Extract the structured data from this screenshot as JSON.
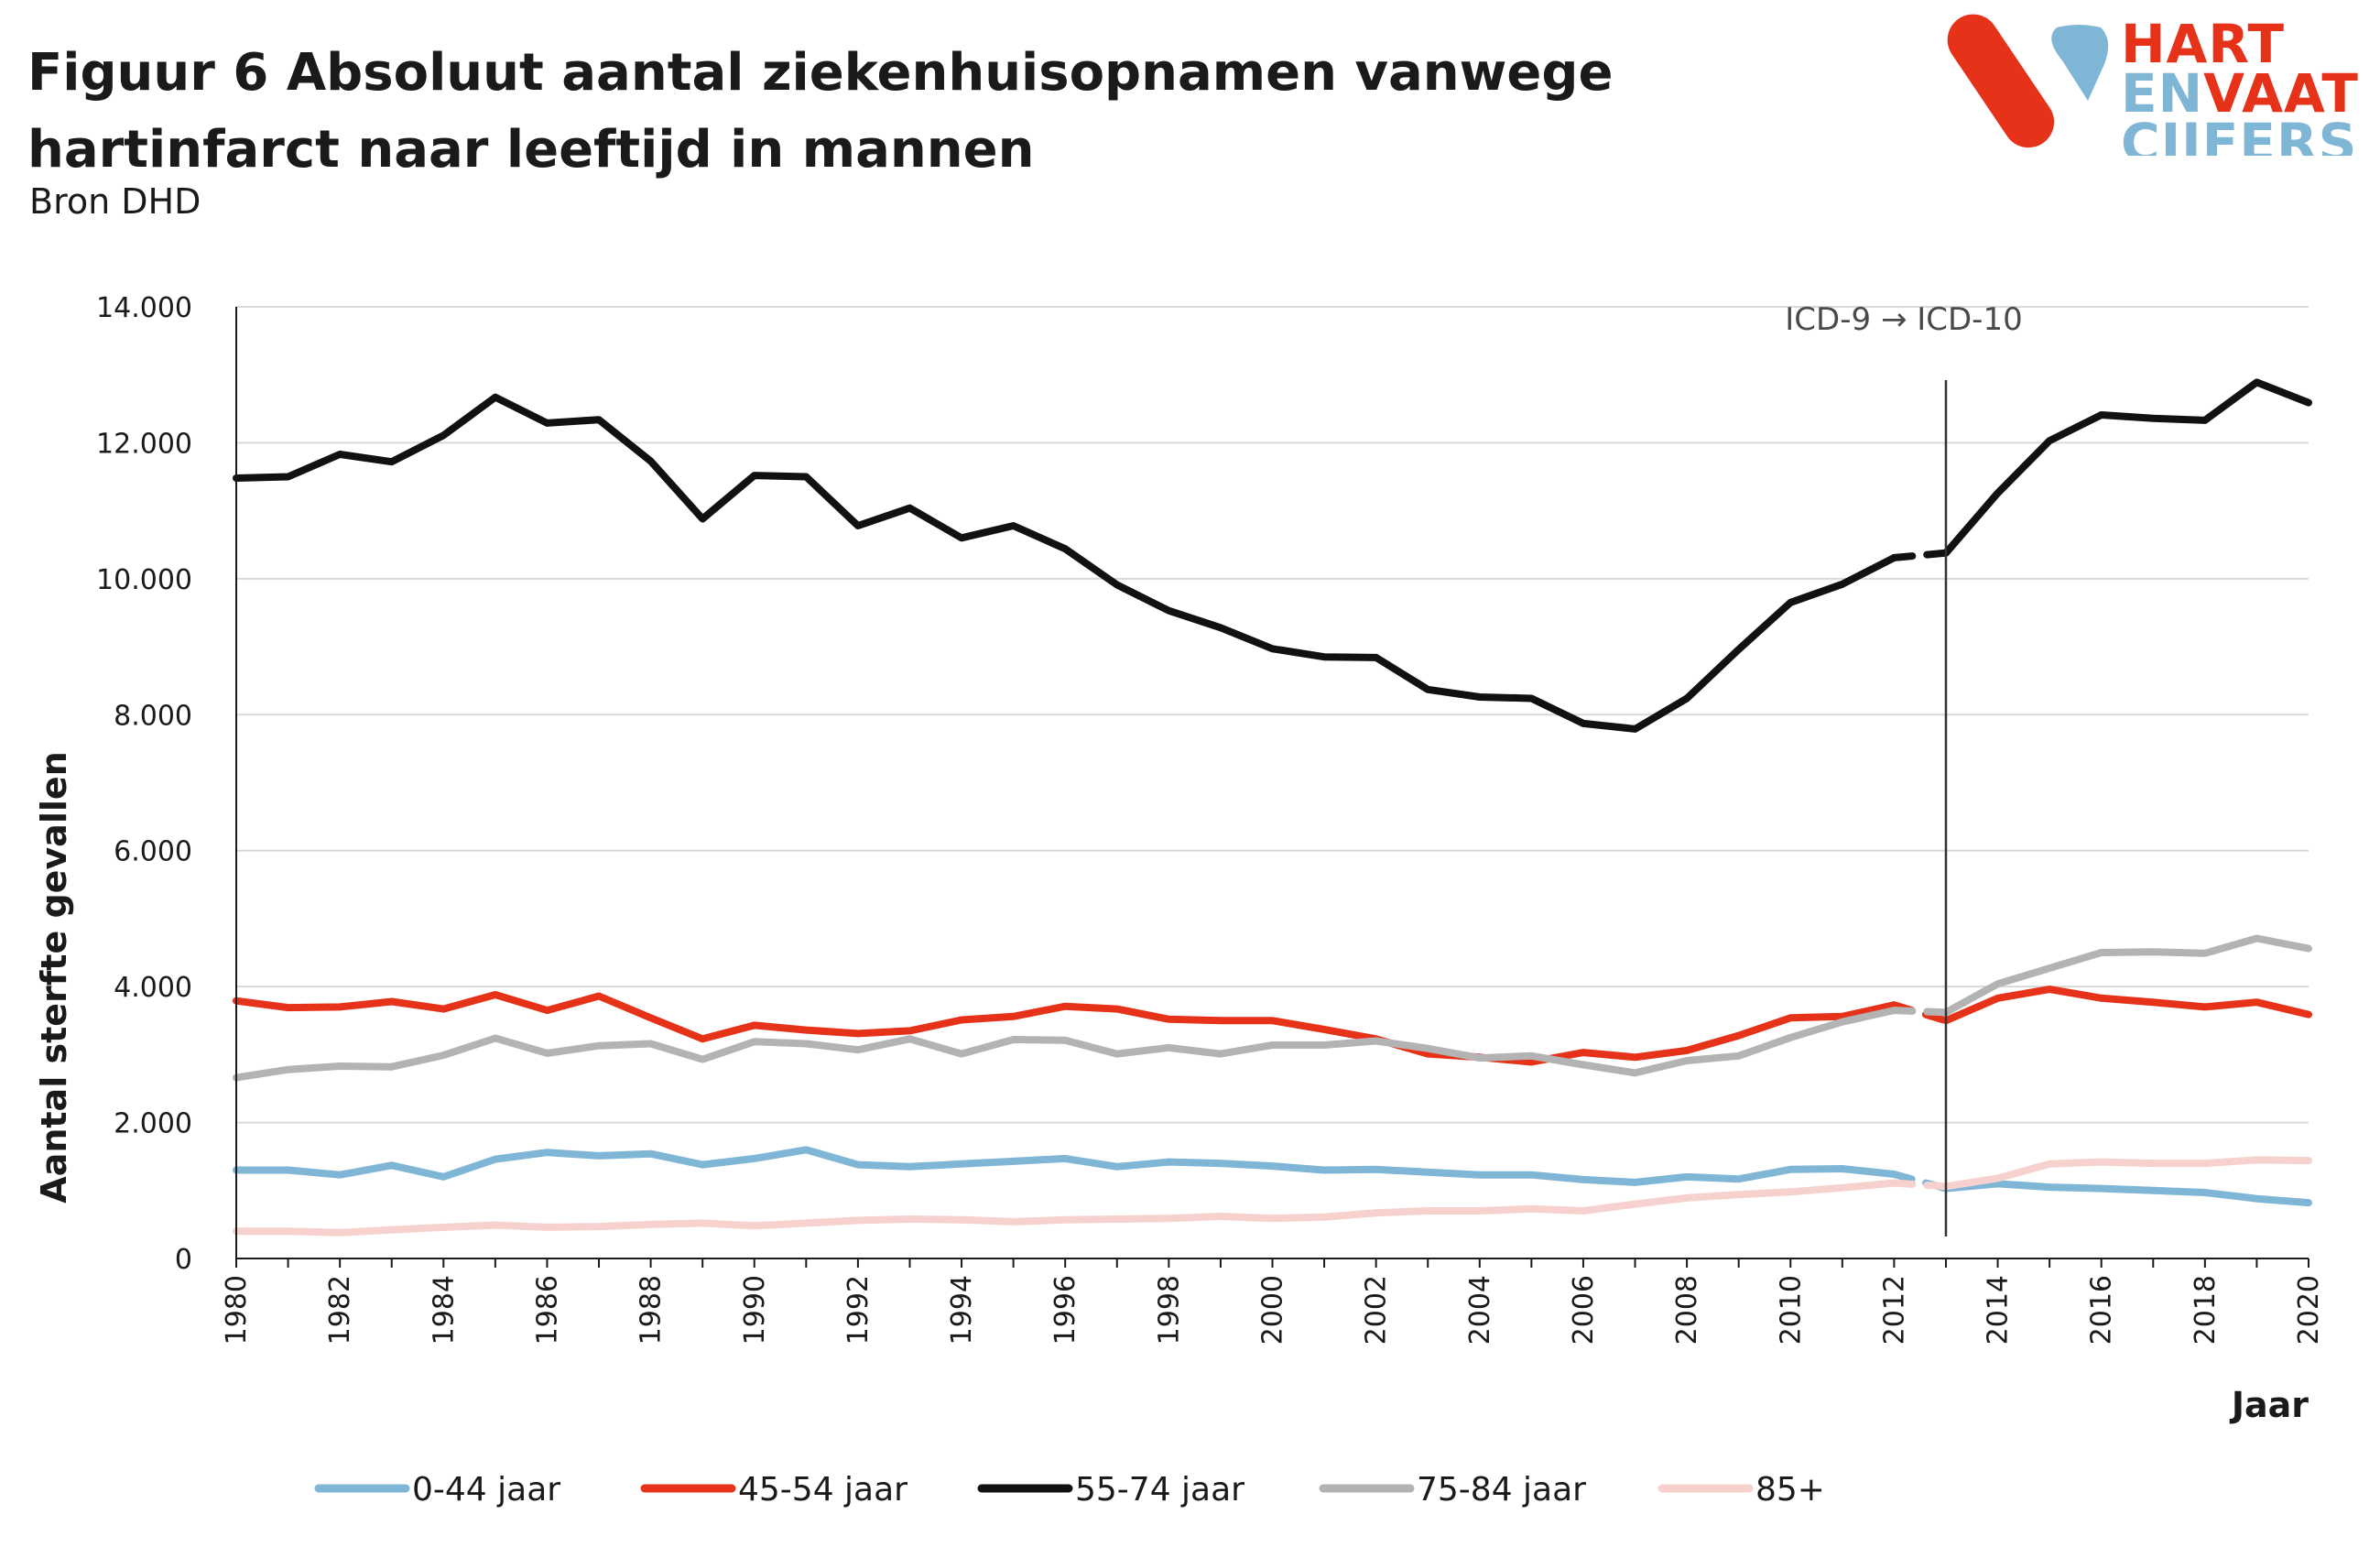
{
  "title": "Figuur 6  Absoluut aantal ziekenhuisopnamen vanwege hartinfarct naar leeftijd in mannen",
  "subtitle": "Bron DHD",
  "logo": {
    "line1": "HART",
    "line2a": "EN",
    "line2b": "VAAT",
    "line3": "CIJFERS",
    "colors": {
      "red": "#e53219",
      "blue": "#7fb5d5"
    }
  },
  "chart_data": {
    "type": "line",
    "title": "",
    "xlabel": "Jaar",
    "ylabel": "Aantal sterfte gevallen",
    "ylim": [
      0,
      14000
    ],
    "xlim": [
      1980,
      2020
    ],
    "y_ticks": [
      0,
      2000,
      4000,
      6000,
      8000,
      10000,
      12000,
      14000
    ],
    "y_tick_labels": [
      "0",
      "2.000",
      "4.000",
      "6.000",
      "8.000",
      "10.000",
      "12.000",
      "14.000"
    ],
    "x_tick_labels": [
      "1980",
      "1982",
      "1984",
      "1986",
      "1988",
      "1990",
      "1992",
      "1994",
      "1996",
      "1998",
      "2000",
      "2002",
      "2004",
      "2006",
      "2008",
      "2010",
      "2012",
      "2014",
      "2016",
      "2018",
      "2020"
    ],
    "grid": "horizontal",
    "legend_position": "bottom",
    "annotation": {
      "text": "ICD-9 → ICD-10",
      "x": 2013
    },
    "x": [
      1980,
      1981,
      1982,
      1983,
      1984,
      1985,
      1986,
      1987,
      1988,
      1989,
      1990,
      1991,
      1992,
      1993,
      1994,
      1995,
      1996,
      1997,
      1998,
      1999,
      2000,
      2001,
      2002,
      2003,
      2004,
      2005,
      2006,
      2007,
      2008,
      2009,
      2010,
      2011,
      2012,
      2013,
      2014,
      2015,
      2016,
      2017,
      2018,
      2019,
      2020
    ],
    "series": [
      {
        "name": "0-44 jaar",
        "color": "#7fb5d5",
        "values": [
          1300,
          1300,
          1230,
          1370,
          1200,
          1460,
          1560,
          1510,
          1540,
          1380,
          1470,
          1600,
          1380,
          1350,
          1390,
          1430,
          1470,
          1350,
          1420,
          1400,
          1360,
          1300,
          1310,
          1270,
          1230,
          1230,
          1160,
          1120,
          1200,
          1170,
          1310,
          1320,
          1240,
          1030,
          1100,
          1050,
          1030,
          1000,
          970,
          880,
          820
        ]
      },
      {
        "name": "45-54 jaar",
        "color": "#e53219",
        "values": [
          3790,
          3690,
          3700,
          3780,
          3670,
          3880,
          3650,
          3860,
          3540,
          3230,
          3430,
          3360,
          3310,
          3350,
          3510,
          3560,
          3710,
          3670,
          3520,
          3500,
          3500,
          3370,
          3230,
          3010,
          2960,
          2890,
          3030,
          2960,
          3060,
          3280,
          3540,
          3560,
          3730,
          3500,
          3830,
          3960,
          3830,
          3770,
          3700,
          3770,
          3590
        ]
      },
      {
        "name": "55-74 jaar",
        "color": "#111111",
        "values": [
          11480,
          11500,
          11830,
          11720,
          12110,
          12670,
          12290,
          12340,
          11730,
          10880,
          11520,
          11500,
          10780,
          11040,
          10600,
          10780,
          10440,
          9910,
          9530,
          9280,
          8970,
          8850,
          8840,
          8370,
          8260,
          8240,
          7870,
          7790,
          8240,
          8960,
          9650,
          9920,
          10310,
          10380,
          11260,
          12030,
          12410,
          12360,
          12330,
          12890,
          12590
        ]
      },
      {
        "name": "75-84 jaar",
        "color": "#b3b3b3",
        "values": [
          2660,
          2780,
          2830,
          2820,
          2990,
          3240,
          3020,
          3130,
          3160,
          2930,
          3190,
          3160,
          3070,
          3230,
          3010,
          3220,
          3210,
          3010,
          3100,
          3010,
          3140,
          3140,
          3200,
          3090,
          2950,
          2980,
          2850,
          2730,
          2910,
          2980,
          3250,
          3480,
          3650,
          3620,
          4040,
          4270,
          4500,
          4510,
          4490,
          4710,
          4560
        ]
      },
      {
        "name": "85+",
        "color": "#f6d1cd",
        "values": [
          400,
          400,
          380,
          420,
          460,
          490,
          460,
          470,
          500,
          520,
          480,
          520,
          560,
          580,
          570,
          540,
          570,
          580,
          590,
          620,
          590,
          610,
          670,
          700,
          700,
          730,
          700,
          800,
          890,
          940,
          980,
          1040,
          1110,
          1060,
          1180,
          1390,
          1420,
          1400,
          1400,
          1450,
          1440
        ]
      }
    ]
  }
}
